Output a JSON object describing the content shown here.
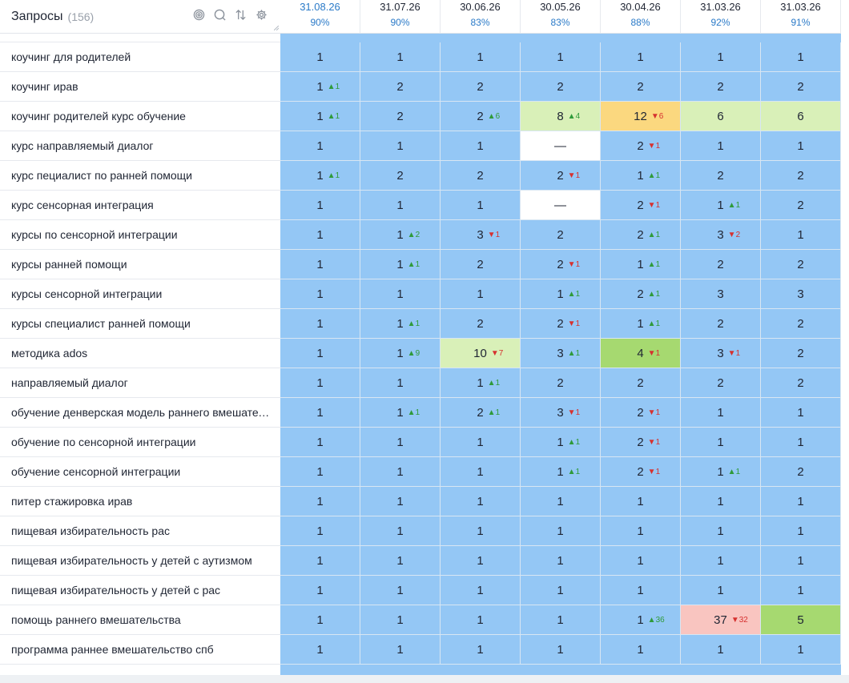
{
  "header": {
    "title": "Запросы",
    "count": "(156)"
  },
  "icons": [
    "target-icon",
    "search-icon",
    "sort-icon",
    "gear-icon"
  ],
  "colors": {
    "blue": "#94c7f5",
    "light_green": "#d9f0b8",
    "green": "#a6d970",
    "orange": "#fbd87f",
    "pink": "#f9c5c0",
    "accent": "#2a7ac8",
    "up": "#2f9a3a",
    "down": "#d6312f"
  },
  "columns": [
    {
      "date": "31.08.26",
      "pct": "90%",
      "selected": true
    },
    {
      "date": "31.07.26",
      "pct": "90%"
    },
    {
      "date": "30.06.26",
      "pct": "83%"
    },
    {
      "date": "30.05.26",
      "pct": "83%"
    },
    {
      "date": "30.04.26",
      "pct": "88%"
    },
    {
      "date": "31.03.26",
      "pct": "92%"
    },
    {
      "date": "31.03.26",
      "pct": "91%"
    }
  ],
  "rows": [
    {
      "query": "коучинг для родителей",
      "cells": [
        {
          "v": "1"
        },
        {
          "v": "1"
        },
        {
          "v": "1"
        },
        {
          "v": "1"
        },
        {
          "v": "1"
        },
        {
          "v": "1"
        },
        {
          "v": "1"
        }
      ]
    },
    {
      "query": "коучинг ирав",
      "cells": [
        {
          "v": "1",
          "d": "▲1",
          "dir": "up"
        },
        {
          "v": "2"
        },
        {
          "v": "2"
        },
        {
          "v": "2"
        },
        {
          "v": "2"
        },
        {
          "v": "2"
        },
        {
          "v": "2"
        }
      ]
    },
    {
      "query": "коучинг родителей курс обучение",
      "cells": [
        {
          "v": "1",
          "d": "▲1",
          "dir": "up"
        },
        {
          "v": "2"
        },
        {
          "v": "2",
          "d": "▲6",
          "dir": "up"
        },
        {
          "v": "8",
          "d": "▲4",
          "dir": "up",
          "bg": "lgreen"
        },
        {
          "v": "12",
          "d": "▼6",
          "dir": "down",
          "bg": "orange"
        },
        {
          "v": "6",
          "bg": "lgreen"
        },
        {
          "v": "6",
          "bg": "lgreen"
        }
      ]
    },
    {
      "query": "курс направляемый диалог",
      "cells": [
        {
          "v": "1"
        },
        {
          "v": "1"
        },
        {
          "v": "1"
        },
        {
          "v": "—",
          "bg": "white"
        },
        {
          "v": "2",
          "d": "▼1",
          "dir": "down"
        },
        {
          "v": "1"
        },
        {
          "v": "1"
        }
      ]
    },
    {
      "query": "курс пециалист по ранней помощи",
      "cells": [
        {
          "v": "1",
          "d": "▲1",
          "dir": "up"
        },
        {
          "v": "2"
        },
        {
          "v": "2"
        },
        {
          "v": "2",
          "d": "▼1",
          "dir": "down"
        },
        {
          "v": "1",
          "d": "▲1",
          "dir": "up"
        },
        {
          "v": "2"
        },
        {
          "v": "2"
        }
      ]
    },
    {
      "query": "курс сенсорная интеграция",
      "cells": [
        {
          "v": "1"
        },
        {
          "v": "1"
        },
        {
          "v": "1"
        },
        {
          "v": "—",
          "bg": "white"
        },
        {
          "v": "2",
          "d": "▼1",
          "dir": "down"
        },
        {
          "v": "1",
          "d": "▲1",
          "dir": "up"
        },
        {
          "v": "2"
        }
      ]
    },
    {
      "query": "курсы по сенсорной интеграции",
      "cells": [
        {
          "v": "1"
        },
        {
          "v": "1",
          "d": "▲2",
          "dir": "up"
        },
        {
          "v": "3",
          "d": "▼1",
          "dir": "down"
        },
        {
          "v": "2"
        },
        {
          "v": "2",
          "d": "▲1",
          "dir": "up"
        },
        {
          "v": "3",
          "d": "▼2",
          "dir": "down"
        },
        {
          "v": "1"
        }
      ]
    },
    {
      "query": "курсы ранней помощи",
      "cells": [
        {
          "v": "1"
        },
        {
          "v": "1",
          "d": "▲1",
          "dir": "up"
        },
        {
          "v": "2"
        },
        {
          "v": "2",
          "d": "▼1",
          "dir": "down"
        },
        {
          "v": "1",
          "d": "▲1",
          "dir": "up"
        },
        {
          "v": "2"
        },
        {
          "v": "2"
        }
      ]
    },
    {
      "query": "курсы сенсорной интеграции",
      "cells": [
        {
          "v": "1"
        },
        {
          "v": "1"
        },
        {
          "v": "1"
        },
        {
          "v": "1",
          "d": "▲1",
          "dir": "up"
        },
        {
          "v": "2",
          "d": "▲1",
          "dir": "up"
        },
        {
          "v": "3"
        },
        {
          "v": "3"
        }
      ]
    },
    {
      "query": "курсы специалист ранней помощи",
      "cells": [
        {
          "v": "1"
        },
        {
          "v": "1",
          "d": "▲1",
          "dir": "up"
        },
        {
          "v": "2"
        },
        {
          "v": "2",
          "d": "▼1",
          "dir": "down"
        },
        {
          "v": "1",
          "d": "▲1",
          "dir": "up"
        },
        {
          "v": "2"
        },
        {
          "v": "2"
        }
      ]
    },
    {
      "query": "методика ados",
      "cells": [
        {
          "v": "1"
        },
        {
          "v": "1",
          "d": "▲9",
          "dir": "up"
        },
        {
          "v": "10",
          "d": "▼7",
          "dir": "down",
          "bg": "lgreen"
        },
        {
          "v": "3",
          "d": "▲1",
          "dir": "up"
        },
        {
          "v": "4",
          "d": "▼1",
          "dir": "down",
          "bg": "green"
        },
        {
          "v": "3",
          "d": "▼1",
          "dir": "down"
        },
        {
          "v": "2"
        }
      ]
    },
    {
      "query": "направляемый диалог",
      "cells": [
        {
          "v": "1"
        },
        {
          "v": "1"
        },
        {
          "v": "1",
          "d": "▲1",
          "dir": "up"
        },
        {
          "v": "2"
        },
        {
          "v": "2"
        },
        {
          "v": "2"
        },
        {
          "v": "2"
        }
      ]
    },
    {
      "query": "обучение денверская модель раннего вмешательства",
      "cells": [
        {
          "v": "1"
        },
        {
          "v": "1",
          "d": "▲1",
          "dir": "up"
        },
        {
          "v": "2",
          "d": "▲1",
          "dir": "up"
        },
        {
          "v": "3",
          "d": "▼1",
          "dir": "down"
        },
        {
          "v": "2",
          "d": "▼1",
          "dir": "down"
        },
        {
          "v": "1"
        },
        {
          "v": "1"
        }
      ]
    },
    {
      "query": "обучение по сенсорной интеграции",
      "cells": [
        {
          "v": "1"
        },
        {
          "v": "1"
        },
        {
          "v": "1"
        },
        {
          "v": "1",
          "d": "▲1",
          "dir": "up"
        },
        {
          "v": "2",
          "d": "▼1",
          "dir": "down"
        },
        {
          "v": "1"
        },
        {
          "v": "1"
        }
      ]
    },
    {
      "query": "обучение сенсорной интеграции",
      "cells": [
        {
          "v": "1"
        },
        {
          "v": "1"
        },
        {
          "v": "1"
        },
        {
          "v": "1",
          "d": "▲1",
          "dir": "up"
        },
        {
          "v": "2",
          "d": "▼1",
          "dir": "down"
        },
        {
          "v": "1",
          "d": "▲1",
          "dir": "up"
        },
        {
          "v": "2"
        }
      ]
    },
    {
      "query": "питер стажировка ирав",
      "cells": [
        {
          "v": "1"
        },
        {
          "v": "1"
        },
        {
          "v": "1"
        },
        {
          "v": "1"
        },
        {
          "v": "1"
        },
        {
          "v": "1"
        },
        {
          "v": "1"
        }
      ]
    },
    {
      "query": "пищевая избирательность рас",
      "cells": [
        {
          "v": "1"
        },
        {
          "v": "1"
        },
        {
          "v": "1"
        },
        {
          "v": "1"
        },
        {
          "v": "1"
        },
        {
          "v": "1"
        },
        {
          "v": "1"
        }
      ]
    },
    {
      "query": "пищевая избирательность у детей с аутизмом",
      "cells": [
        {
          "v": "1"
        },
        {
          "v": "1"
        },
        {
          "v": "1"
        },
        {
          "v": "1"
        },
        {
          "v": "1"
        },
        {
          "v": "1"
        },
        {
          "v": "1"
        }
      ]
    },
    {
      "query": "пищевая избирательность у детей с рас",
      "cells": [
        {
          "v": "1"
        },
        {
          "v": "1"
        },
        {
          "v": "1"
        },
        {
          "v": "1"
        },
        {
          "v": "1"
        },
        {
          "v": "1"
        },
        {
          "v": "1"
        }
      ]
    },
    {
      "query": "помощь раннего вмешательства",
      "cells": [
        {
          "v": "1"
        },
        {
          "v": "1"
        },
        {
          "v": "1"
        },
        {
          "v": "1"
        },
        {
          "v": "1",
          "d": "▲36",
          "dir": "up"
        },
        {
          "v": "37",
          "d": "▼32",
          "dir": "down",
          "bg": "pink"
        },
        {
          "v": "5",
          "bg": "green"
        }
      ]
    },
    {
      "query": "программа раннее вмешательство спб",
      "cells": [
        {
          "v": "1"
        },
        {
          "v": "1"
        },
        {
          "v": "1"
        },
        {
          "v": "1"
        },
        {
          "v": "1"
        },
        {
          "v": "1"
        },
        {
          "v": "1"
        }
      ]
    }
  ]
}
